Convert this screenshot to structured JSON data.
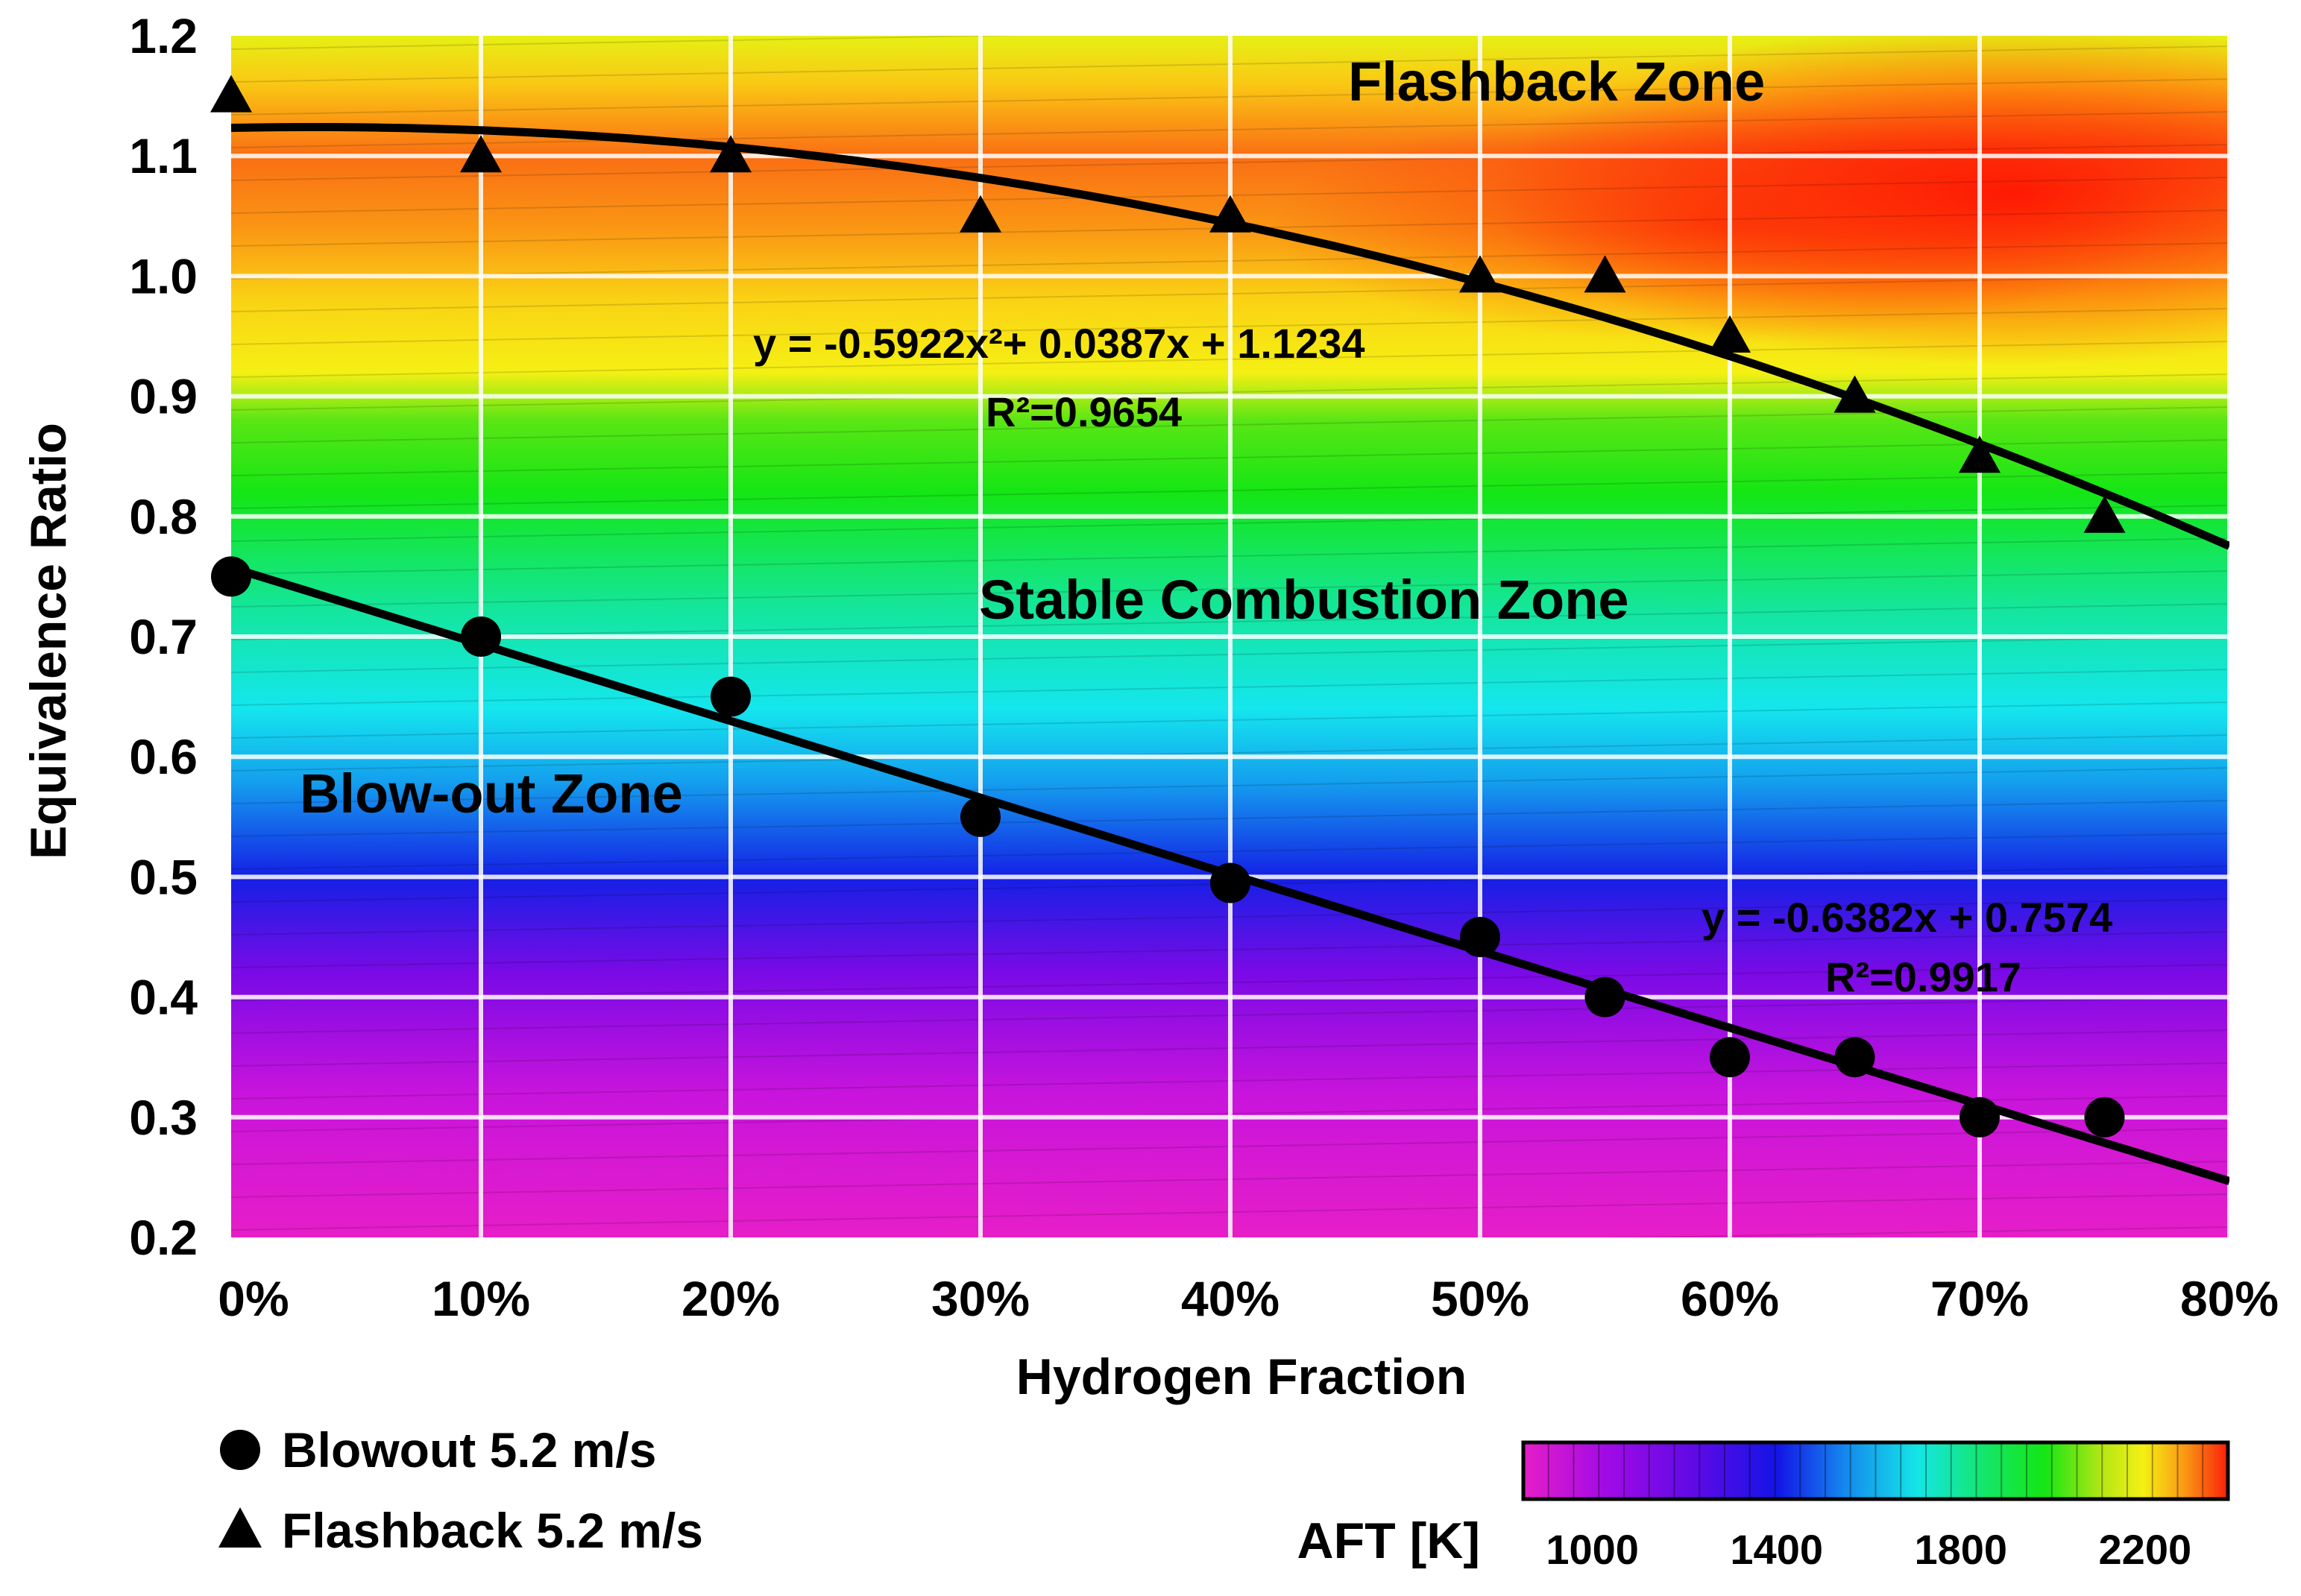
{
  "chart_data": {
    "type": "scatter",
    "xlabel": "Hydrogen Fraction",
    "ylabel": "Equivalence Ratio",
    "xlim": [
      0,
      80
    ],
    "ylim": [
      0.2,
      1.2
    ],
    "x_ticks": [
      0,
      10,
      20,
      30,
      40,
      50,
      60,
      70,
      80
    ],
    "x_tick_labels": [
      "0%",
      "10%",
      "20%",
      "30%",
      "40%",
      "50%",
      "60%",
      "70%",
      "80%"
    ],
    "y_ticks": [
      0.2,
      0.3,
      0.4,
      0.5,
      0.6,
      0.7,
      0.8,
      0.9,
      1.0,
      1.1,
      1.2
    ],
    "y_tick_labels": [
      "0.2",
      "0.3",
      "0.4",
      "0.5",
      "0.6",
      "0.7",
      "0.8",
      "0.9",
      "1.0",
      "1.1",
      "1.2"
    ],
    "grid": true,
    "series": [
      {
        "name": "Blowout 5.2 m/s",
        "marker": "circle",
        "x": [
          0,
          10,
          20,
          30,
          40,
          50,
          55,
          60,
          65,
          70,
          75
        ],
        "y": [
          0.75,
          0.7,
          0.65,
          0.55,
          0.495,
          0.45,
          0.4,
          0.35,
          0.35,
          0.3,
          0.3
        ],
        "fit": {
          "type": "linear",
          "coefficients": [
            -0.6382,
            0.7574
          ]
        }
      },
      {
        "name": "Flashback 5.2 m/s",
        "marker": "triangle",
        "x": [
          0,
          10,
          20,
          30,
          40,
          50,
          55,
          60,
          65,
          70,
          75
        ],
        "y": [
          1.15,
          1.1,
          1.1,
          1.05,
          1.05,
          1.0,
          1.0,
          0.95,
          0.9,
          0.85,
          0.8
        ],
        "fit": {
          "type": "quadratic",
          "coefficients": [
            -0.5922,
            0.0387,
            1.1234
          ]
        }
      }
    ],
    "annotations": {
      "flashback_zone": "Flashback Zone",
      "stable_zone": "Stable Combustion Zone",
      "blowout_zone": "Blow-out Zone",
      "flashback_eqn": "y = -0.5922x²+ 0.0387x + 1.1234",
      "flashback_r2": "R²=0.9654",
      "blowout_eqn": "y = -0.6382x + 0.7574",
      "blowout_r2": "R²=0.9917"
    },
    "colorbar": {
      "label": "AFT [K]",
      "ticks": [
        1000,
        1400,
        1800,
        2200
      ],
      "tick_labels": [
        "1000",
        "1400",
        "1800",
        "2200"
      ],
      "range": [
        850,
        2380
      ]
    },
    "legend": {
      "placement": "bottom-left",
      "items": [
        "Blowout 5.2 m/s",
        "Flashback 5.2 m/s"
      ]
    },
    "colors": {
      "magenta": "#e61ec8",
      "purple": "#8c0ae6",
      "blue": "#1428e6",
      "cyan": "#14e6ee",
      "green": "#14e614",
      "yellow": "#f5f014",
      "orange": "#fa8c14",
      "red": "#fa1e0a",
      "grid": "#ffffff",
      "marks": "#000000"
    }
  }
}
